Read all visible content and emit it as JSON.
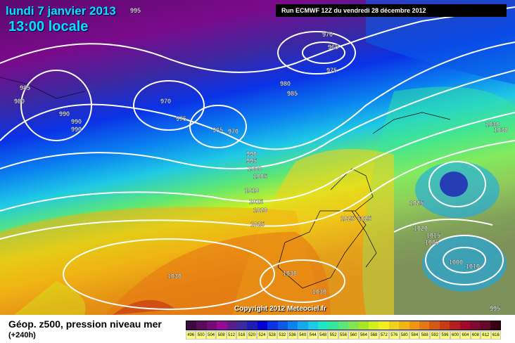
{
  "header": {
    "date": "lundi 7 janvier 2013",
    "time": "13:00 locale",
    "run": "Run ECMWF 12Z du vendredi 28 décembre 2012"
  },
  "copyright": "Copyright 2012 Meteociel.fr",
  "footer": {
    "parameter": "Géop. z500, pression niveau mer",
    "forecast_hour": "(+240h)"
  },
  "legend": {
    "values": [
      "496",
      "500",
      "504",
      "508",
      "512",
      "516",
      "520",
      "524",
      "528",
      "532",
      "536",
      "540",
      "544",
      "548",
      "552",
      "556",
      "560",
      "564",
      "568",
      "572",
      "576",
      "580",
      "584",
      "588",
      "592",
      "596",
      "600",
      "604",
      "608",
      "612",
      "616"
    ],
    "colors": [
      "#3c0a3c",
      "#5a0a5a",
      "#780a78",
      "#960a96",
      "#5a1e8c",
      "#3c28a0",
      "#1e1eb4",
      "#0000d2",
      "#0a32e6",
      "#0a5ae6",
      "#0a82f0",
      "#14aaf0",
      "#1ec8e6",
      "#1ee6c8",
      "#32e6a0",
      "#5ae678",
      "#82e650",
      "#aae628",
      "#d2f01e",
      "#f0f01e",
      "#f0d21e",
      "#f0b414",
      "#f09614",
      "#e67814",
      "#d25a14",
      "#c83c14",
      "#b41e1e",
      "#a00a28",
      "#820a32",
      "#640a28",
      "#3c0014"
    ]
  },
  "pressure_labels": [
    "995",
    "970",
    "965",
    "975",
    "985",
    "980",
    "990",
    "990",
    "990",
    "975",
    "970",
    "965",
    "970",
    "980",
    "985",
    "990",
    "995",
    "1000",
    "1005",
    "1010",
    "1015",
    "1020",
    "1025",
    "1025",
    "1030",
    "1030",
    "1030",
    "1030",
    "1030",
    "1025",
    "1025",
    "1020",
    "1015",
    "1005",
    "1000",
    "1010",
    "995"
  ]
}
